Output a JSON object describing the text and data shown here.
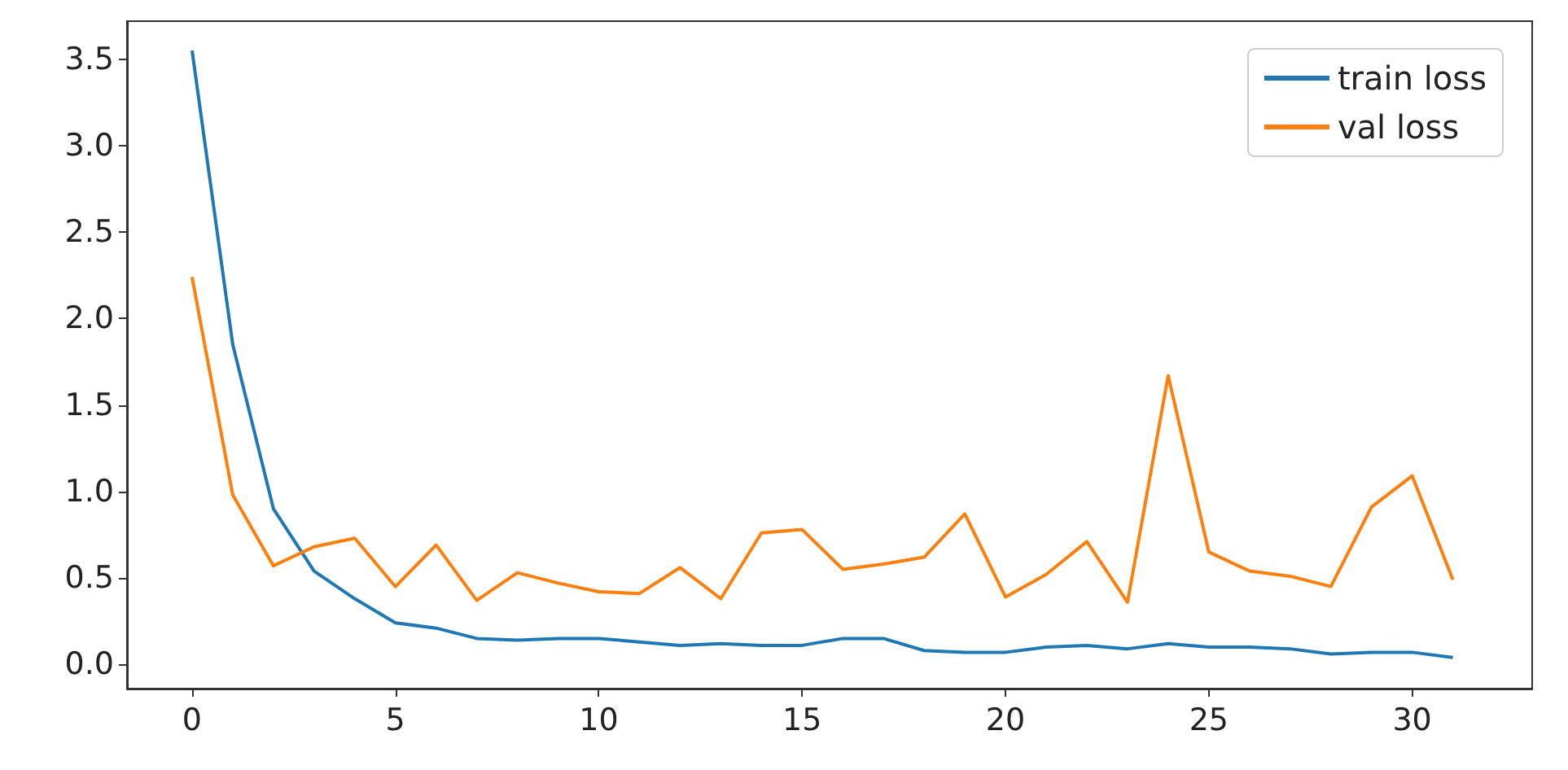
{
  "chart_data": {
    "type": "line",
    "x": [
      0,
      1,
      2,
      3,
      4,
      5,
      6,
      7,
      8,
      9,
      10,
      11,
      12,
      13,
      14,
      15,
      16,
      17,
      18,
      19,
      20,
      21,
      22,
      23,
      24,
      25,
      26,
      27,
      28,
      29,
      30,
      31
    ],
    "series": [
      {
        "name": "train loss",
        "color": "#1f77b4",
        "values": [
          3.55,
          1.85,
          0.9,
          0.54,
          0.38,
          0.24,
          0.21,
          0.15,
          0.14,
          0.15,
          0.15,
          0.13,
          0.11,
          0.12,
          0.11,
          0.11,
          0.15,
          0.15,
          0.08,
          0.07,
          0.07,
          0.1,
          0.11,
          0.09,
          0.12,
          0.1,
          0.1,
          0.09,
          0.06,
          0.07,
          0.07,
          0.04
        ]
      },
      {
        "name": "val loss",
        "color": "#ff7f0e",
        "values": [
          2.24,
          0.98,
          0.57,
          0.68,
          0.73,
          0.45,
          0.69,
          0.37,
          0.53,
          0.47,
          0.42,
          0.41,
          0.56,
          0.38,
          0.76,
          0.78,
          0.55,
          0.58,
          0.62,
          0.87,
          0.39,
          0.52,
          0.71,
          0.36,
          1.67,
          0.65,
          0.54,
          0.51,
          0.45,
          0.91,
          1.09,
          0.49
        ]
      }
    ],
    "xlim": [
      -1.6,
      32.95
    ],
    "ylim": [
      -0.14,
      3.72
    ],
    "xticks": [
      0,
      5,
      10,
      15,
      20,
      25,
      30
    ],
    "yticks": [
      {
        "value": 0,
        "label": "0.0"
      },
      {
        "value": 0.5,
        "label": "0.5"
      },
      {
        "value": 1,
        "label": "1.0"
      },
      {
        "value": 1.5,
        "label": "1.5"
      },
      {
        "value": 2,
        "label": "2.0"
      },
      {
        "value": 2.5,
        "label": "2.5"
      },
      {
        "value": 3,
        "label": "3.0"
      },
      {
        "value": 3.5,
        "label": "3.5"
      }
    ],
    "grid": false,
    "legend": "top right",
    "marker": "none",
    "line_style": "solid"
  }
}
